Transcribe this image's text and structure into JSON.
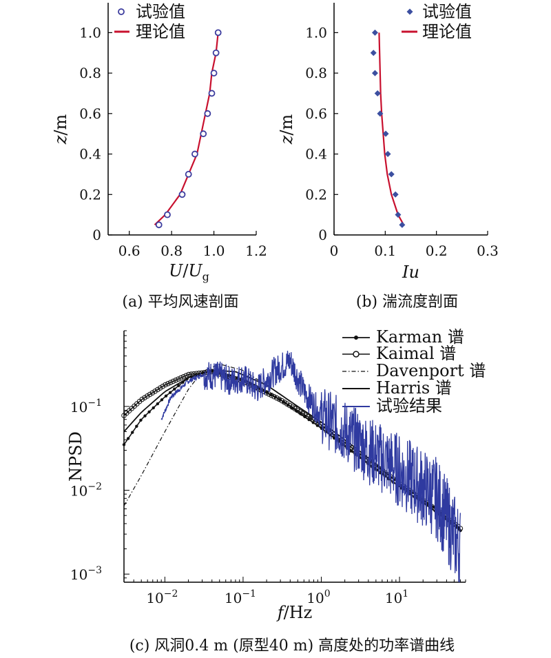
{
  "chart_data": [
    {
      "id": "a",
      "type": "scatter",
      "caption": "(a) 平均风速剖面",
      "xlabel_main": "U/U",
      "xlabel_sub": "g",
      "ylabel": "z/m",
      "xlim": [
        0.5,
        1.2
      ],
      "ylim": [
        0,
        1.1
      ],
      "x_ticks": [
        "0.6",
        "0.8",
        "1.0",
        "1.2"
      ],
      "y_ticks": [
        "0",
        "0.2",
        "0.4",
        "0.6",
        "0.8",
        "1.0"
      ],
      "legend": [
        "试验值",
        "理论值"
      ],
      "series": [
        {
          "name": "试验值",
          "style": "open-circle",
          "color": "#3c3c9e",
          "points": [
            [
              0.74,
              0.05
            ],
            [
              0.78,
              0.1
            ],
            [
              0.85,
              0.2
            ],
            [
              0.88,
              0.3
            ],
            [
              0.91,
              0.4
            ],
            [
              0.95,
              0.5
            ],
            [
              0.97,
              0.6
            ],
            [
              0.99,
              0.7
            ],
            [
              1.0,
              0.8
            ],
            [
              1.01,
              0.9
            ],
            [
              1.02,
              1.0
            ]
          ]
        },
        {
          "name": "理论值",
          "style": "line",
          "color": "#c8102e",
          "points": [
            [
              0.72,
              0.05
            ],
            [
              0.77,
              0.1
            ],
            [
              0.84,
              0.2
            ],
            [
              0.88,
              0.3
            ],
            [
              0.92,
              0.4
            ],
            [
              0.94,
              0.5
            ],
            [
              0.96,
              0.6
            ],
            [
              0.98,
              0.7
            ],
            [
              0.99,
              0.8
            ],
            [
              1.01,
              0.9
            ],
            [
              1.02,
              1.0
            ]
          ]
        }
      ]
    },
    {
      "id": "b",
      "type": "scatter",
      "caption": "(b) 湍流度剖面",
      "xlabel": "Iu",
      "ylabel": "z/m",
      "xlim": [
        0,
        0.3
      ],
      "ylim": [
        0,
        1.1
      ],
      "x_ticks": [
        "0",
        "0.1",
        "0.2",
        "0.3"
      ],
      "y_ticks": [
        "0",
        "0.2",
        "0.4",
        "0.6",
        "0.8",
        "1.0"
      ],
      "legend": [
        "试验值",
        "理论值"
      ],
      "series": [
        {
          "name": "试验值",
          "style": "diamond",
          "color": "#3c4fa0",
          "points": [
            [
              0.133,
              0.05
            ],
            [
              0.125,
              0.1
            ],
            [
              0.12,
              0.2
            ],
            [
              0.112,
              0.3
            ],
            [
              0.105,
              0.4
            ],
            [
              0.101,
              0.5
            ],
            [
              0.09,
              0.6
            ],
            [
              0.085,
              0.7
            ],
            [
              0.08,
              0.8
            ],
            [
              0.077,
              0.9
            ],
            [
              0.08,
              1.0
            ]
          ]
        },
        {
          "name": "理论值",
          "style": "line",
          "color": "#c8102e",
          "points": [
            [
              0.136,
              0.05
            ],
            [
              0.125,
              0.1
            ],
            [
              0.112,
              0.2
            ],
            [
              0.104,
              0.3
            ],
            [
              0.099,
              0.4
            ],
            [
              0.096,
              0.5
            ],
            [
              0.093,
              0.6
            ],
            [
              0.091,
              0.7
            ],
            [
              0.09,
              0.8
            ],
            [
              0.089,
              0.9
            ],
            [
              0.088,
              1.0
            ]
          ]
        }
      ]
    },
    {
      "id": "c",
      "type": "line",
      "scale": "log-log",
      "caption": "(c) 风洞0.4 m (原型40 m) 高度处的功率谱曲线",
      "xlabel_main": "f",
      "xlabel_unit": "/Hz",
      "ylabel": "NPSD",
      "xlim": [
        0.003,
        70
      ],
      "ylim": [
        0.0008,
        0.8
      ],
      "x_ticks": [
        {
          "base": "10",
          "exp": "−2",
          "value": 0.01
        },
        {
          "base": "10",
          "exp": "−1",
          "value": 0.1
        },
        {
          "base": "10",
          "exp": "0",
          "value": 1
        },
        {
          "base": "10",
          "exp": "1",
          "value": 10
        }
      ],
      "y_ticks": [
        {
          "base": "10",
          "exp": "−1",
          "value": 0.1
        },
        {
          "base": "10",
          "exp": "−2",
          "value": 0.01
        },
        {
          "base": "10",
          "exp": "−3",
          "value": 0.001
        }
      ],
      "legend": [
        "Karman 谱",
        "Kaimal 谱",
        "Davenport 谱",
        "Harris 谱",
        "试验结果"
      ],
      "series": [
        {
          "name": "Karman 谱",
          "style": "line-star",
          "color": "#111111",
          "x": [
            0.003,
            0.005,
            0.01,
            0.02,
            0.04,
            0.1,
            0.3,
            1,
            3,
            10,
            30,
            60
          ],
          "y": [
            0.035,
            0.07,
            0.13,
            0.22,
            0.27,
            0.21,
            0.12,
            0.055,
            0.025,
            0.011,
            0.0055,
            0.0033
          ]
        },
        {
          "name": "Kaimal 谱",
          "style": "line-circle",
          "color": "#111111",
          "x": [
            0.003,
            0.005,
            0.01,
            0.02,
            0.04,
            0.1,
            0.3,
            1,
            3,
            10,
            30,
            60
          ],
          "y": [
            0.078,
            0.12,
            0.18,
            0.24,
            0.26,
            0.2,
            0.12,
            0.06,
            0.028,
            0.012,
            0.0058,
            0.0035
          ]
        },
        {
          "name": "Davenport 谱",
          "style": "dashdot",
          "color": "#111111",
          "x": [
            0.003,
            0.005,
            0.01,
            0.02,
            0.03,
            0.05,
            0.1,
            0.3,
            1,
            3,
            10,
            30,
            60
          ],
          "y": [
            0.0065,
            0.015,
            0.05,
            0.16,
            0.26,
            0.32,
            0.27,
            0.14,
            0.06,
            0.026,
            0.011,
            0.0055,
            0.0034
          ]
        },
        {
          "name": "Harris 谱",
          "style": "solid",
          "color": "#111111",
          "x": [
            0.003,
            0.005,
            0.01,
            0.02,
            0.04,
            0.08,
            0.2,
            0.5,
            1,
            3,
            10,
            30,
            60
          ],
          "y": [
            0.05,
            0.085,
            0.15,
            0.22,
            0.27,
            0.26,
            0.18,
            0.1,
            0.065,
            0.03,
            0.012,
            0.006,
            0.0035
          ]
        },
        {
          "name": "试验结果",
          "style": "noisy",
          "color": "#2f3aa0",
          "x": [
            0.009,
            0.012,
            0.02,
            0.03,
            0.05,
            0.07,
            0.1,
            0.15,
            0.25,
            0.4,
            0.6,
            1,
            2,
            4,
            8,
            15,
            30,
            60
          ],
          "y": [
            0.07,
            0.13,
            0.2,
            0.24,
            0.23,
            0.2,
            0.22,
            0.16,
            0.26,
            0.35,
            0.15,
            0.08,
            0.05,
            0.03,
            0.02,
            0.013,
            0.008,
            0.002
          ]
        }
      ]
    }
  ]
}
